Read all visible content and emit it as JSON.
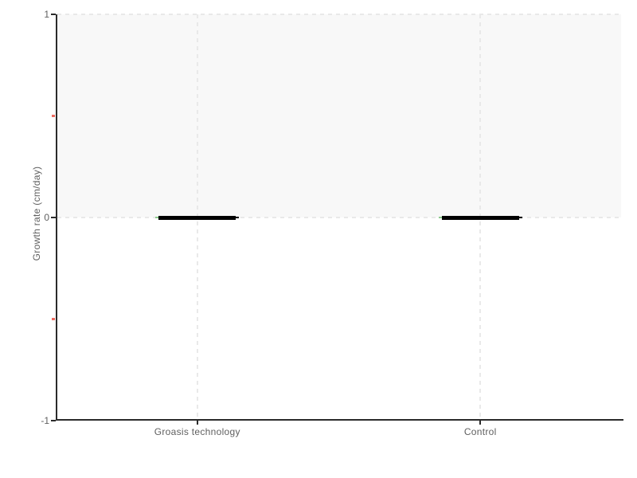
{
  "chart_data": {
    "type": "bar",
    "subtype": "boxplot-style median lines (both groups collapsed at zero)",
    "title": "",
    "xlabel": "",
    "ylabel": "Growth rate (cm/day)",
    "categories": [
      "Groasis technology",
      "Control"
    ],
    "series": [
      {
        "name": "Growth rate",
        "values": [
          0,
          0
        ]
      }
    ],
    "ylim": [
      -1,
      1
    ],
    "yticks": [
      {
        "value": 1,
        "label": "1"
      },
      {
        "value": 0,
        "label": "0"
      },
      {
        "value": -1,
        "label": "-1"
      }
    ],
    "minor_yticks": [
      0.5,
      -0.5
    ],
    "shaded_band": {
      "from": 0,
      "to": 1
    },
    "gridlines": {
      "horizontal_at": [
        1,
        0
      ],
      "vertical": "at-category-centers",
      "style": "dashed"
    },
    "legend_position": "none",
    "colors": {
      "background": "#ffffff",
      "band": "#f8f8f8",
      "grid": "#e9e9e9",
      "axis": "#2b2b2b",
      "tick_label": "#5f5f5f",
      "minor_tick": "#ed6a5f",
      "median_line": "#000000",
      "box_edge_hint": "#8bc98b"
    }
  }
}
